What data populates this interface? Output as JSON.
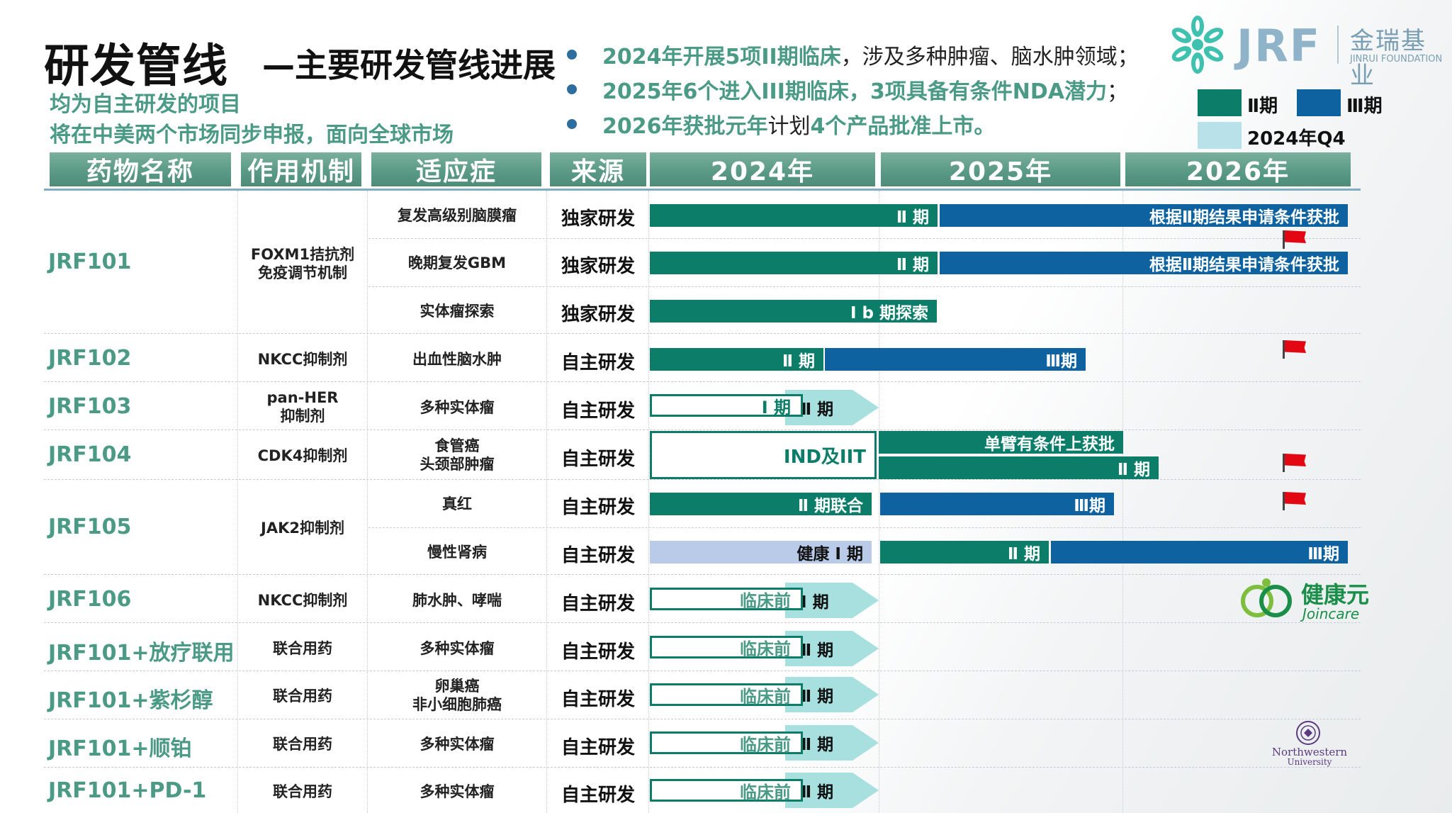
{
  "title": {
    "main": "研发管线",
    "sub": "—主要研发管线进展"
  },
  "subtitle_lines": [
    "均为自主研发的项目",
    "将在中美两个市场同步申报，面向全球市场"
  ],
  "bullets": [
    {
      "hl": "2024年开展5项II期临床",
      "rest": "，涉及多种肿瘤、脑水肿领域；"
    },
    {
      "hl": "2025年6个进入III期临床，3项具备有条件NDA潜力",
      "rest": "；"
    },
    {
      "hl": "2026年获批元年",
      "rest": "计划",
      "hl2": "4个产品批准上市。"
    }
  ],
  "logo": {
    "mark": "JRF",
    "name_cn": "金瑞基业",
    "name_en": "JINRUI FOUNDATION"
  },
  "legend": [
    {
      "label": "Ⅱ期",
      "color": "#0b7d68"
    },
    {
      "label": "Ⅲ期",
      "color": "#0e62a0"
    },
    {
      "label": "2024年Q4",
      "color": "#b9e1ea"
    }
  ],
  "headers": [
    "药物名称",
    "作用机制",
    "适应症",
    "来源",
    "2024年",
    "2025年",
    "2026年"
  ],
  "drugs": [
    "JRF101",
    "JRF102",
    "JRF103",
    "JRF104",
    "JRF105",
    "JRF106",
    "JRF101+放疗联用",
    "JRF101+紫杉醇",
    "JRF101+顺铂",
    "JRF101+PD-1"
  ],
  "mechanisms": {
    "jrf101": [
      "FOXM1拮抗剂",
      "免疫调节机制"
    ],
    "jrf102": "NKCC抑制剂",
    "jrf103": [
      "pan-HER",
      "抑制剂"
    ],
    "jrf104": "CDK4抑制剂",
    "jrf105": "JAK2抑制剂",
    "jrf106": "NKCC抑制剂",
    "combo": "联合用药"
  },
  "indications": {
    "r1": "复发高级别脑膜瘤",
    "r2": "晚期复发GBM",
    "r3": "实体瘤探索",
    "r4": "出血性脑水肿",
    "r5": "多种实体瘤",
    "r6": [
      "食管癌",
      "头颈部肿瘤"
    ],
    "r7": "真红",
    "r8": "慢性肾病",
    "r9": "肺水肿、哮喘",
    "r10": "多种实体瘤",
    "r11": [
      "卵巢癌",
      "非小细胞肺癌"
    ],
    "r12": "多种实体瘤",
    "r13": "多种实体瘤"
  },
  "sources": {
    "exclusive": "独家研发",
    "inhouse": "自主研发"
  },
  "bars": {
    "p2": "Ⅱ 期",
    "cond_approval": "根据Ⅱ期结果申请条件获批",
    "p1b": "Ⅰ b 期探索",
    "p3": "Ⅲ期",
    "p1": "Ⅰ 期",
    "ind_iit": "IND及IIT",
    "single_arm": "单臂有条件上获批",
    "p2_combo": "Ⅱ 期联合",
    "healthy_p1": "健康 Ⅰ 期",
    "preclinical": "临床前"
  },
  "partner_logos": {
    "joincare_cn": "健康元",
    "joincare_en": "Joincare",
    "northwestern": "Northwestern",
    "northwestern2": "University"
  }
}
